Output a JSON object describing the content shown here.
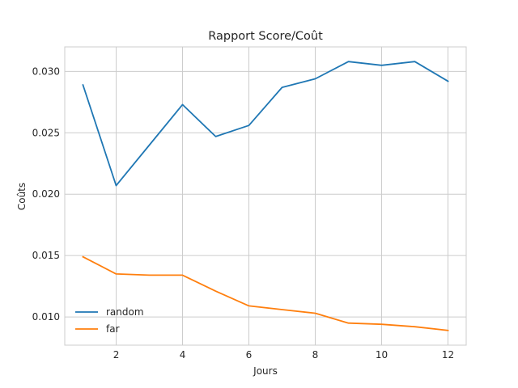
{
  "chart_data": {
    "type": "line",
    "title": "Rapport Score/Coût",
    "xlabel": "Jours",
    "ylabel": "Coûts",
    "x": [
      1,
      2,
      3,
      4,
      5,
      6,
      7,
      8,
      9,
      10,
      11,
      12
    ],
    "xlim": [
      0.45,
      12.55
    ],
    "ylim": [
      0.0077,
      0.032
    ],
    "xticks": [
      2,
      4,
      6,
      8,
      10,
      12
    ],
    "xtick_labels": [
      "2",
      "4",
      "6",
      "8",
      "10",
      "12"
    ],
    "yticks": [
      0.01,
      0.015,
      0.02,
      0.025,
      0.03
    ],
    "ytick_labels": [
      "0.010",
      "0.015",
      "0.020",
      "0.025",
      "0.030"
    ],
    "grid": true,
    "legend_position": "lower-left",
    "series": [
      {
        "name": "random",
        "color": "#1f77b4",
        "values": [
          0.0289,
          0.0207,
          0.024,
          0.0273,
          0.0247,
          0.0256,
          0.0287,
          0.0294,
          0.0308,
          0.0305,
          0.0308,
          0.0292
        ]
      },
      {
        "name": "far",
        "color": "#ff7f0e",
        "values": [
          0.0149,
          0.0135,
          0.0134,
          0.0134,
          0.0121,
          0.0109,
          0.0106,
          0.0103,
          0.0095,
          0.0094,
          0.0092,
          0.0089
        ]
      }
    ]
  }
}
